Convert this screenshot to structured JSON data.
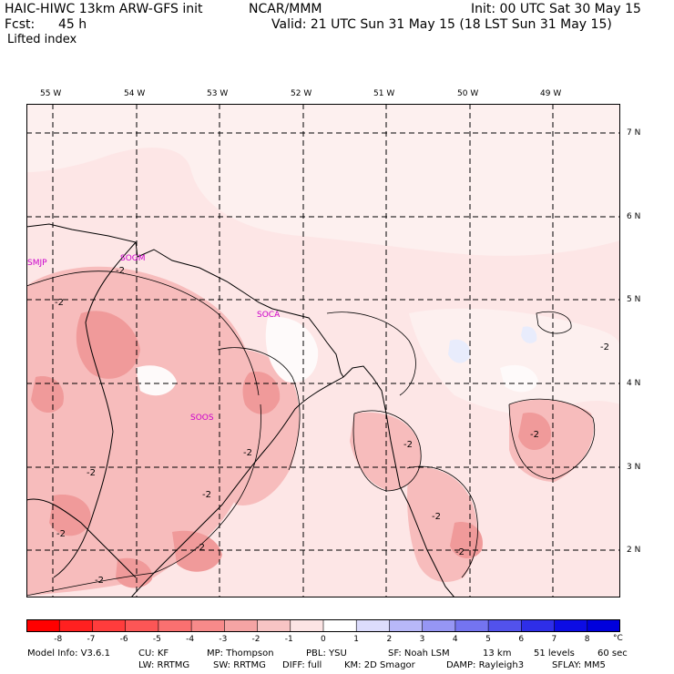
{
  "header": {
    "left_line1": "HAIC-HIWC 13km ARW-GFS init",
    "center_line1": "NCAR/MMM",
    "right_line1": "Init: 00 UTC Sat 30 May 15",
    "fcst_label": "Fcst:",
    "fcst_value": "45 h",
    "valid_line": "Valid: 21 UTC Sun 31 May 15 (18 LST Sun 31 May 15)",
    "field_name": "Lifted index"
  },
  "map": {
    "lon_labels": [
      "55 W",
      "54 W",
      "53 W",
      "52 W",
      "51 W",
      "50 W",
      "49 W"
    ],
    "lat_labels": [
      "7 N",
      "6 N",
      "5 N",
      "4 N",
      "3 N",
      "2 N"
    ],
    "stations": [
      "SMJP",
      "SOGM",
      "SOCA",
      "SOOS"
    ],
    "contour_labels": [
      "-2",
      "-2",
      "-2",
      "-2",
      "-2",
      "-2",
      "-2",
      "-2",
      "-2",
      "-2",
      "-2",
      "-2",
      "-2"
    ],
    "colors": {
      "background": "#fde6e6",
      "light": "#fdf0ef",
      "medium": "#f7bcbc",
      "strong": "#f09a9a",
      "white_patch": "#fefafa",
      "blue_patch": "#e8ecfc"
    }
  },
  "colorbar": {
    "labels": [
      "-8",
      "-7",
      "-6",
      "-5",
      "-4",
      "-3",
      "-2",
      "-1",
      "0",
      "1",
      "2",
      "3",
      "4",
      "5",
      "6",
      "7",
      "8"
    ],
    "unit": "°C",
    "colors": [
      "#ff0000",
      "#ff2020",
      "#ff3c3c",
      "#fc5656",
      "#fa7070",
      "#f78a8a",
      "#f5a4a4",
      "#f7c4c4",
      "#fce4e4",
      "#ffffff",
      "#dcdcfc",
      "#b8b8f8",
      "#9696f4",
      "#7474f0",
      "#5252ec",
      "#2e2ee8",
      "#0c0ce4",
      "#0000dc"
    ]
  },
  "footer": {
    "line1": [
      "Model Info: V3.6.1",
      "CU: KF",
      "MP: Thompson",
      "PBL: YSU",
      "SF: Noah LSM",
      "13 km",
      "51 levels",
      "60 sec"
    ],
    "line2": [
      "LW: RRTMG",
      "SW: RRTMG",
      "DIFF: full",
      "KM: 2D Smagor",
      "DAMP: Rayleigh3",
      "SFLAY: MM5"
    ]
  }
}
